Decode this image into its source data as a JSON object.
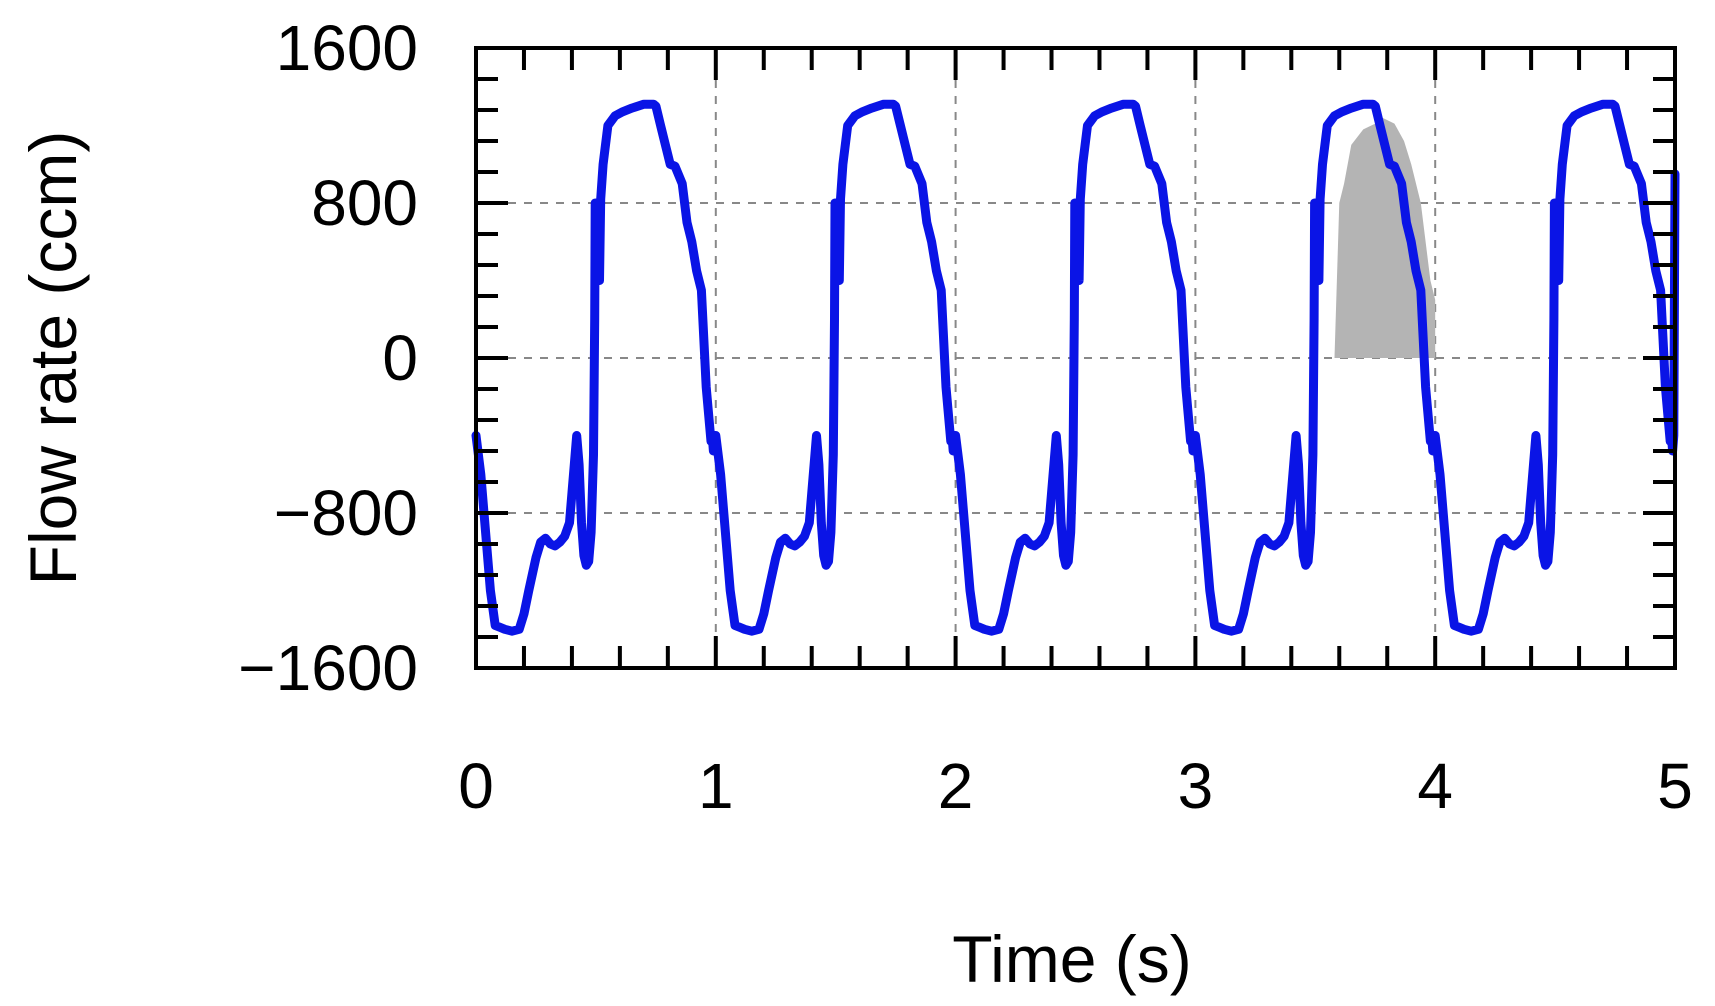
{
  "chart_data": {
    "type": "line",
    "title": "",
    "xlabel": "Time (s)",
    "ylabel": "Flow rate (ccm)",
    "xlim": [
      0,
      5
    ],
    "ylim": [
      -1600,
      1600
    ],
    "xticks": [
      0,
      1,
      2,
      3,
      4,
      5
    ],
    "xtick_labels": [
      "0",
      "1",
      "2",
      "3",
      "4",
      "5"
    ],
    "yticks": [
      1600,
      800,
      0,
      -800,
      -1600
    ],
    "ytick_labels": [
      "1600",
      "800",
      "0",
      "−800",
      "−1600"
    ],
    "grid": true,
    "grid_style": "dashed",
    "legend": "none",
    "series": [
      {
        "color": "#0a14e6",
        "period": 1.0,
        "cycle_x": [
          0.0,
          0.02,
          0.04,
          0.06,
          0.08,
          0.1,
          0.12,
          0.15,
          0.18,
          0.2,
          0.22,
          0.25,
          0.27,
          0.29,
          0.31,
          0.33,
          0.35,
          0.37,
          0.39,
          0.4,
          0.41,
          0.42,
          0.43,
          0.44,
          0.45,
          0.46,
          0.47,
          0.48,
          0.49,
          0.495,
          0.497,
          0.498,
          0.5,
          0.505,
          0.51,
          0.515,
          0.52,
          0.53,
          0.55,
          0.58,
          0.61,
          0.65,
          0.7,
          0.74,
          0.75,
          0.77,
          0.79,
          0.81,
          0.83,
          0.86,
          0.88,
          0.9,
          0.92,
          0.94,
          0.96,
          0.98,
          0.985,
          0.99,
          0.995
        ],
        "cycle_y": [
          -400,
          -600,
          -900,
          -1200,
          -1380,
          -1390,
          -1400,
          -1410,
          -1400,
          -1320,
          -1200,
          -1030,
          -950,
          -930,
          -960,
          -970,
          -950,
          -920,
          -850,
          -700,
          -550,
          -400,
          -550,
          -850,
          -1020,
          -1070,
          -1050,
          -900,
          -500,
          200,
          800,
          400,
          780,
          800,
          600,
          400,
          820,
          1000,
          1200,
          1250,
          1270,
          1290,
          1310,
          1310,
          1300,
          1200,
          1100,
          1000,
          990,
          900,
          700,
          600,
          450,
          350,
          -150,
          -430,
          -400,
          -480,
          -400
        ],
        "extra_points": [
          [
            5.0,
            950
          ]
        ]
      }
    ],
    "annotations": [
      {
        "type": "shaded_region",
        "color": "#b4b4b4",
        "x": [
          3.58,
          3.6,
          3.62,
          3.65,
          3.7,
          3.75,
          3.78,
          3.83,
          3.87,
          3.9,
          3.94,
          3.98,
          4.0,
          4.0,
          3.58
        ],
        "y": [
          0,
          800,
          900,
          1100,
          1180,
          1210,
          1240,
          1210,
          1120,
          1000,
          800,
          400,
          300,
          0,
          0
        ]
      }
    ]
  }
}
